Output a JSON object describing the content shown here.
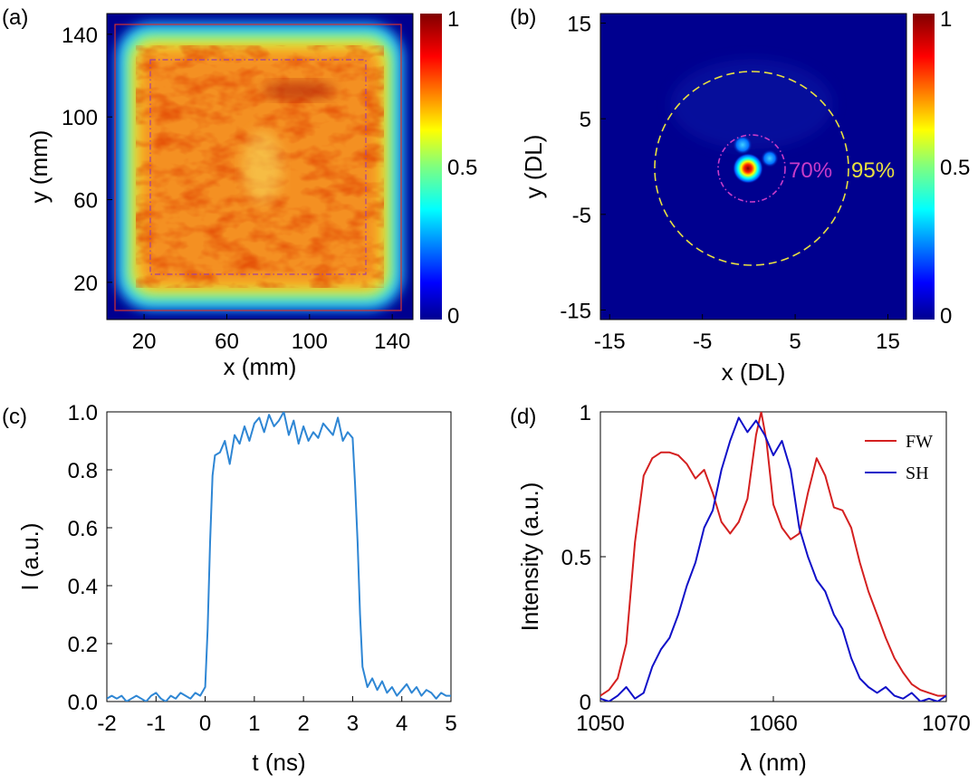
{
  "panel_labels": [
    "(a)",
    "(b)",
    "(c)",
    "(d)"
  ],
  "colors": {
    "fw": "#d42020",
    "sh": "#1010c8",
    "pulse": "#2e86d4",
    "ring70": "#c83cc8",
    "ring95": "#e8e040",
    "label70": "#c83cc8",
    "label95": "#e8e040"
  },
  "chart_data": [
    {
      "type": "heatmap",
      "panel": "(a)",
      "xlabel": "x (mm)",
      "ylabel": "y (mm)",
      "xlim": [
        2,
        150
      ],
      "ylim": [
        2,
        150
      ],
      "xticks": [
        "20",
        "60",
        "100",
        "140"
      ],
      "yticks": [
        "20",
        "60",
        "100",
        "140"
      ],
      "colorbar": {
        "ticks": [
          "0",
          "0.5",
          "1"
        ],
        "range": [
          0,
          1
        ]
      },
      "description_values": {
        "flat_top_region_mm": [
          20,
          130
        ],
        "edge_falloff_mm": [
          5,
          145
        ]
      }
    },
    {
      "type": "heatmap",
      "panel": "(b)",
      "xlabel": "x (DL)",
      "ylabel": "y (DL)",
      "xlim": [
        -16,
        17
      ],
      "ylim": [
        -16,
        16
      ],
      "xticks": [
        "-15",
        "-5",
        "5",
        "15"
      ],
      "yticks": [
        "-15",
        "-5",
        "5",
        "15"
      ],
      "colorbar": {
        "ticks": [
          "0",
          "0.5",
          "1"
        ],
        "range": [
          0,
          1
        ]
      },
      "annotations": [
        {
          "text": "70%",
          "radius_DL": 3
        },
        {
          "text": "95%",
          "radius_DL": 10.5
        }
      ]
    },
    {
      "type": "line",
      "panel": "(c)",
      "xlabel": "t (ns)",
      "ylabel": "I (a.u.)",
      "xlim": [
        -2,
        5
      ],
      "ylim": [
        0,
        1
      ],
      "xticks": [
        "-2",
        "-1",
        "0",
        "1",
        "2",
        "3",
        "4",
        "5"
      ],
      "yticks": [
        "0.0",
        "0.2",
        "0.4",
        "0.6",
        "0.8",
        "1.0"
      ],
      "series": [
        {
          "x": [
            -2.0,
            -1.9,
            -1.8,
            -1.7,
            -1.6,
            -1.5,
            -1.4,
            -1.3,
            -1.2,
            -1.1,
            -1.0,
            -0.9,
            -0.8,
            -0.7,
            -0.6,
            -0.5,
            -0.4,
            -0.3,
            -0.2,
            -0.1,
            0.0,
            0.05,
            0.1,
            0.15,
            0.2,
            0.3,
            0.4,
            0.5,
            0.6,
            0.7,
            0.8,
            0.9,
            1.0,
            1.1,
            1.2,
            1.3,
            1.4,
            1.5,
            1.6,
            1.7,
            1.8,
            1.9,
            2.0,
            2.1,
            2.2,
            2.3,
            2.4,
            2.5,
            2.6,
            2.7,
            2.8,
            2.9,
            3.0,
            3.05,
            3.1,
            3.15,
            3.2,
            3.3,
            3.4,
            3.5,
            3.6,
            3.7,
            3.8,
            3.9,
            4.0,
            4.1,
            4.2,
            4.3,
            4.4,
            4.5,
            4.6,
            4.7,
            4.8,
            4.9,
            5.0
          ],
          "y": [
            0.01,
            0.02,
            0.01,
            0.02,
            0.0,
            0.01,
            0.02,
            0.01,
            0.0,
            0.02,
            0.03,
            0.01,
            0.0,
            0.02,
            0.01,
            0.03,
            0.02,
            0.01,
            0.03,
            0.02,
            0.05,
            0.25,
            0.55,
            0.78,
            0.85,
            0.86,
            0.9,
            0.82,
            0.92,
            0.89,
            0.95,
            0.9,
            0.96,
            0.98,
            0.93,
            0.99,
            0.95,
            0.97,
            1.0,
            0.92,
            0.97,
            0.89,
            0.95,
            0.9,
            0.93,
            0.91,
            0.96,
            0.94,
            0.92,
            0.98,
            0.9,
            0.93,
            0.91,
            0.75,
            0.55,
            0.3,
            0.12,
            0.05,
            0.08,
            0.04,
            0.07,
            0.03,
            0.05,
            0.02,
            0.04,
            0.06,
            0.03,
            0.05,
            0.02,
            0.04,
            0.03,
            0.01,
            0.03,
            0.02,
            0.02
          ]
        }
      ]
    },
    {
      "type": "line",
      "panel": "(d)",
      "xlabel": "λ (nm)",
      "ylabel": "Intensity (a.u.)",
      "xlim": [
        1050,
        1070
      ],
      "ylim": [
        0,
        1
      ],
      "xticks": [
        "1050",
        "1060",
        "1070"
      ],
      "yticks": [
        "0",
        "0.5",
        "1"
      ],
      "legend": {
        "placement": "top-right"
      },
      "series": [
        {
          "name": "FW",
          "x": [
            1050,
            1050.5,
            1051,
            1051.5,
            1052,
            1052.5,
            1053,
            1053.5,
            1054,
            1054.5,
            1055,
            1055.5,
            1056,
            1056.5,
            1057,
            1057.5,
            1058,
            1058.5,
            1059,
            1059.3,
            1059.6,
            1060,
            1060.5,
            1061,
            1061.5,
            1062,
            1062.5,
            1063,
            1063.5,
            1064,
            1064.5,
            1065,
            1065.5,
            1066,
            1066.5,
            1067,
            1067.5,
            1068,
            1068.5,
            1069,
            1069.5,
            1070
          ],
          "y": [
            0.02,
            0.04,
            0.08,
            0.2,
            0.55,
            0.78,
            0.84,
            0.86,
            0.86,
            0.85,
            0.82,
            0.77,
            0.8,
            0.72,
            0.62,
            0.58,
            0.62,
            0.7,
            0.92,
            1.0,
            0.9,
            0.68,
            0.6,
            0.56,
            0.58,
            0.72,
            0.84,
            0.78,
            0.67,
            0.66,
            0.6,
            0.48,
            0.38,
            0.3,
            0.22,
            0.15,
            0.1,
            0.06,
            0.04,
            0.03,
            0.02,
            0.02
          ]
        },
        {
          "name": "SH",
          "x": [
            1050,
            1050.5,
            1051,
            1051.5,
            1052,
            1052.5,
            1053,
            1053.5,
            1054,
            1054.5,
            1055,
            1055.5,
            1056,
            1056.5,
            1057,
            1057.5,
            1058,
            1058.5,
            1059,
            1059.5,
            1060,
            1060.5,
            1061,
            1061.5,
            1062,
            1062.5,
            1063,
            1063.5,
            1064,
            1064.5,
            1065,
            1065.5,
            1066,
            1066.5,
            1067,
            1067.5,
            1068,
            1068.5,
            1069,
            1069.5,
            1070
          ],
          "y": [
            0.01,
            0.0,
            0.02,
            0.05,
            0.01,
            0.03,
            0.12,
            0.18,
            0.22,
            0.3,
            0.4,
            0.48,
            0.6,
            0.66,
            0.8,
            0.9,
            0.98,
            0.93,
            0.97,
            0.92,
            0.85,
            0.9,
            0.8,
            0.6,
            0.5,
            0.42,
            0.38,
            0.3,
            0.25,
            0.15,
            0.08,
            0.05,
            0.03,
            0.05,
            0.02,
            0.01,
            0.03,
            0.0,
            0.01,
            0.0,
            0.02
          ]
        }
      ]
    }
  ]
}
